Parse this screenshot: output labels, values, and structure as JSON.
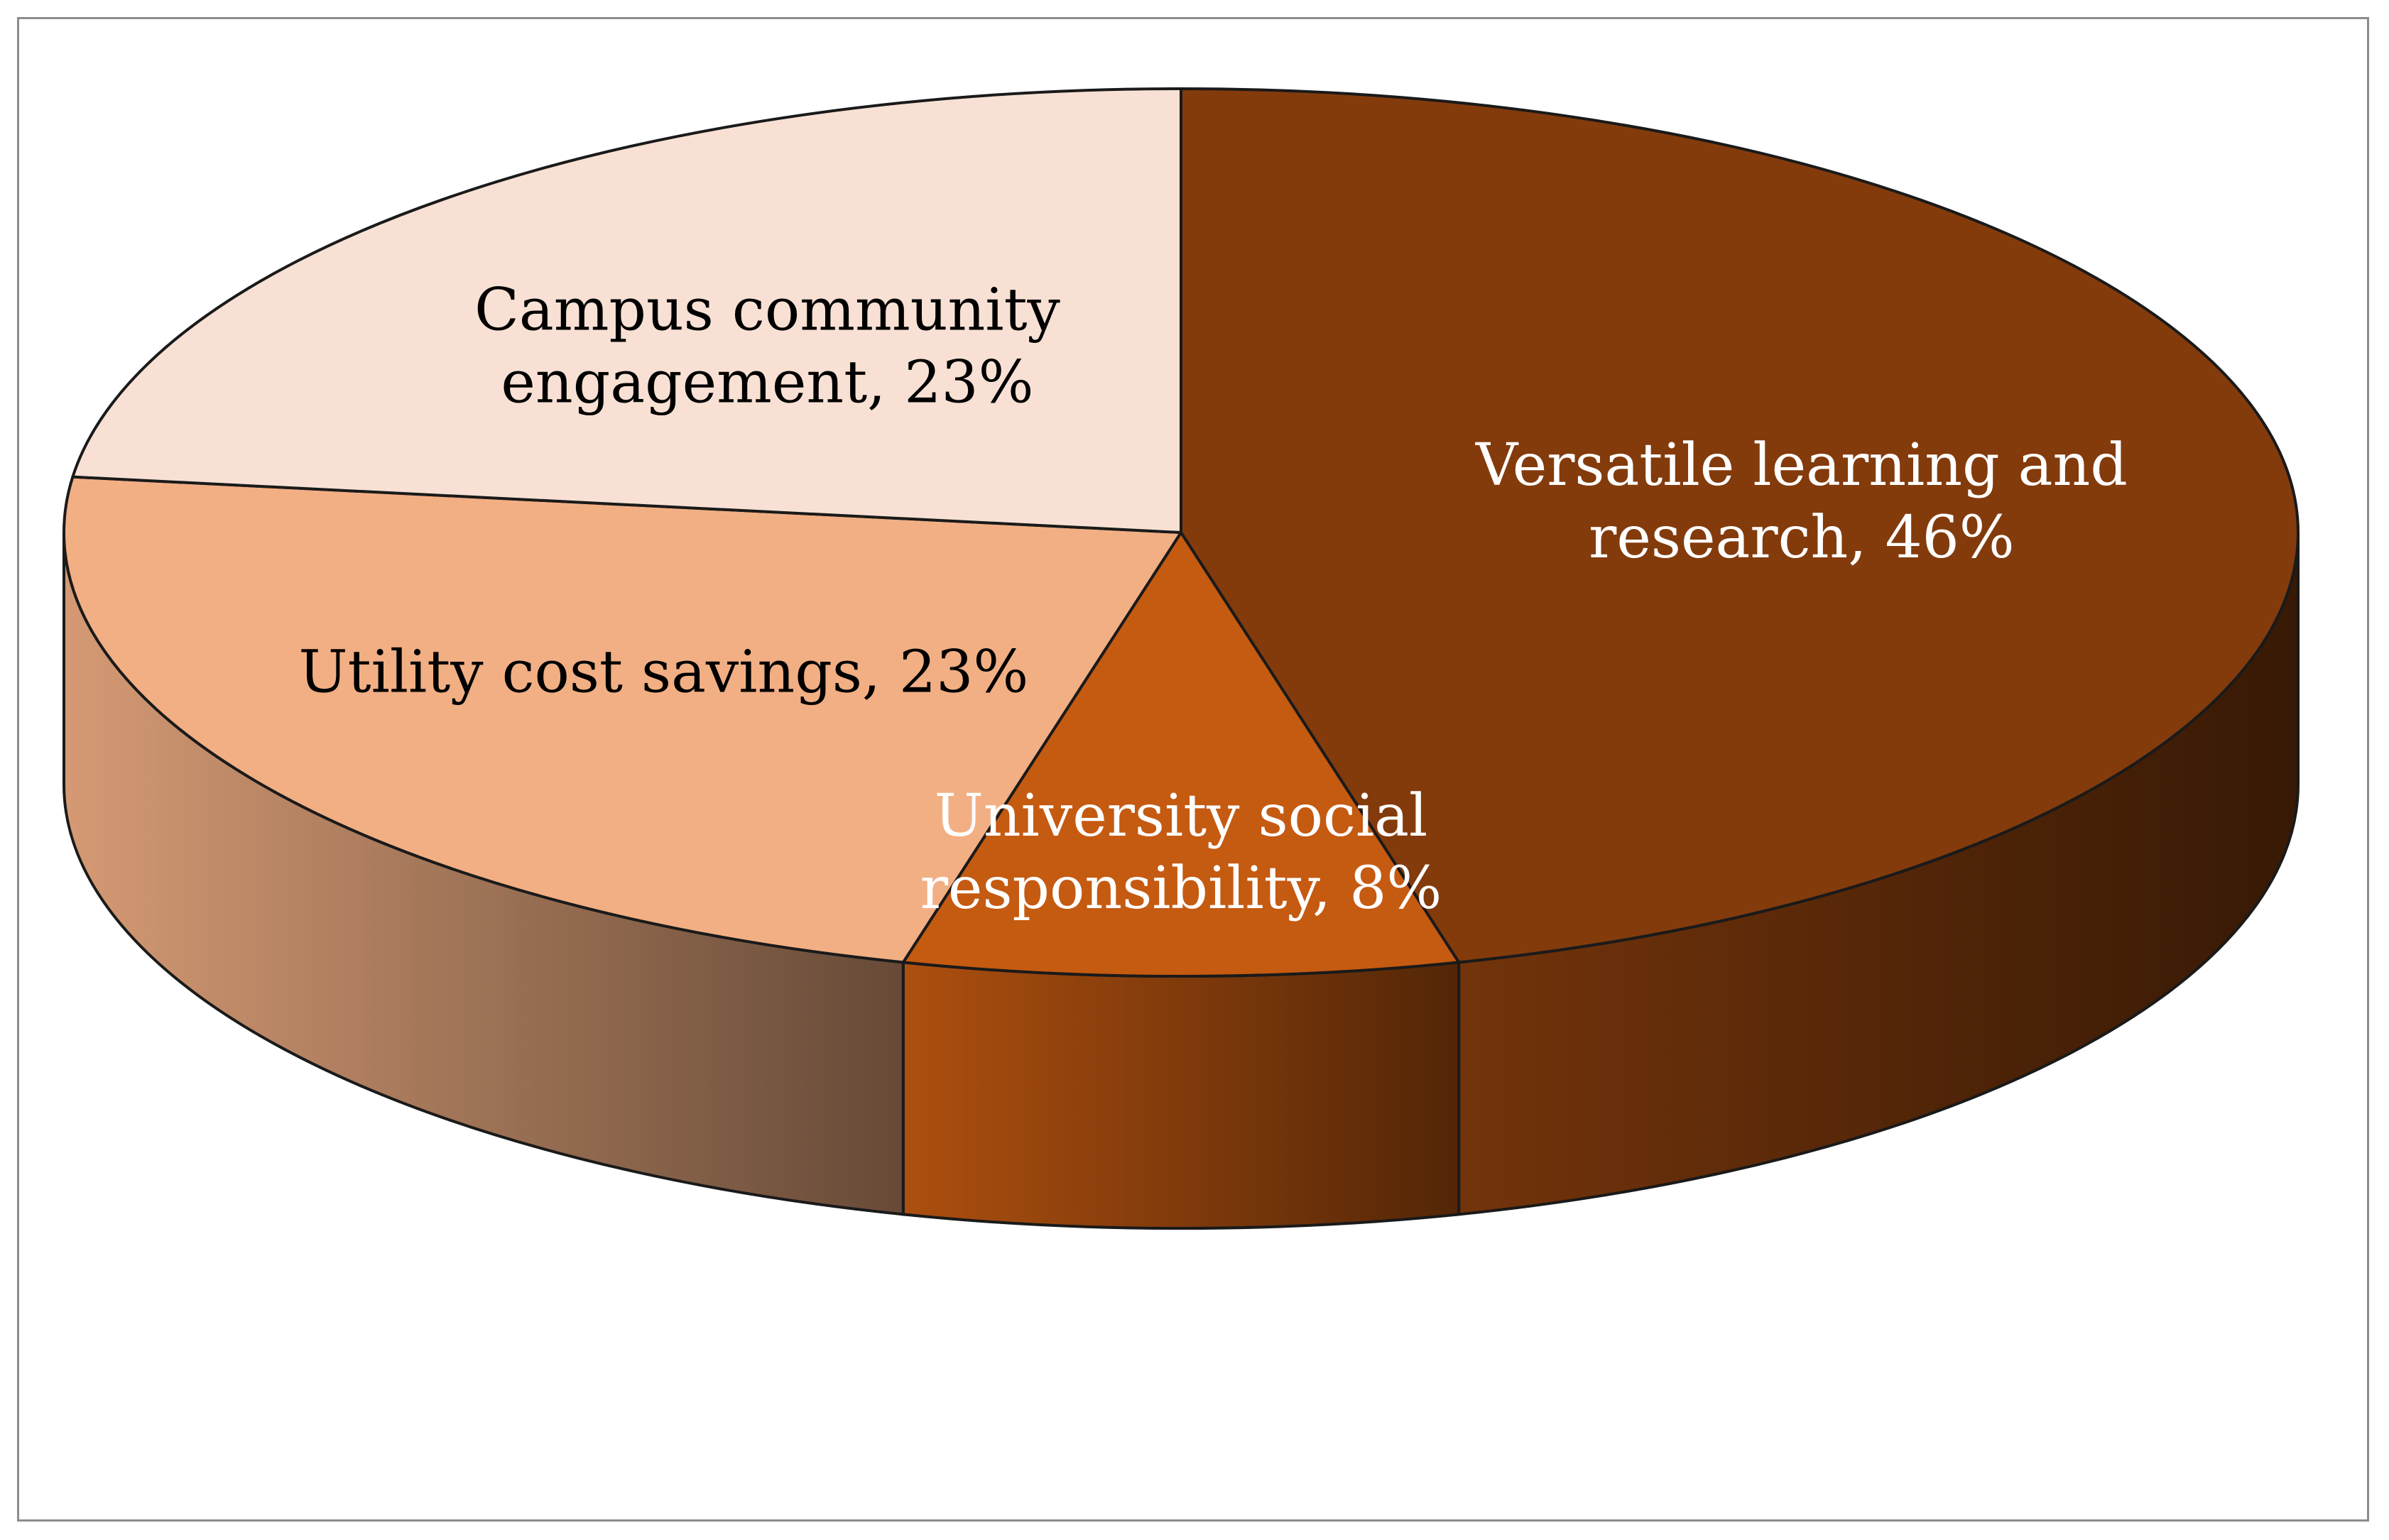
{
  "chart_data": {
    "type": "pie",
    "style": "3d",
    "slices": [
      {
        "label": "Versatile learning and research",
        "value": 46,
        "color": "#833B0C",
        "text_color": "#FFFFFF",
        "label_lines": [
          "Versatile learning and",
          "research, 46%"
        ]
      },
      {
        "label": "University social responsibility",
        "value": 8,
        "color": "#C55A11",
        "text_color": "#FFFFFF",
        "label_lines": [
          "University social",
          "responsibility, 8%"
        ]
      },
      {
        "label": "Utility cost savings",
        "value": 23,
        "color": "#F2AF84",
        "text_color": "#000000",
        "label_lines": [
          "Utility cost savings, 23%"
        ]
      },
      {
        "label": "Campus community engagement",
        "value": 23,
        "color": "#F8E1D4",
        "text_color": "#000000",
        "label_lines": [
          "Campus community",
          "engagement, 23%"
        ]
      }
    ]
  }
}
